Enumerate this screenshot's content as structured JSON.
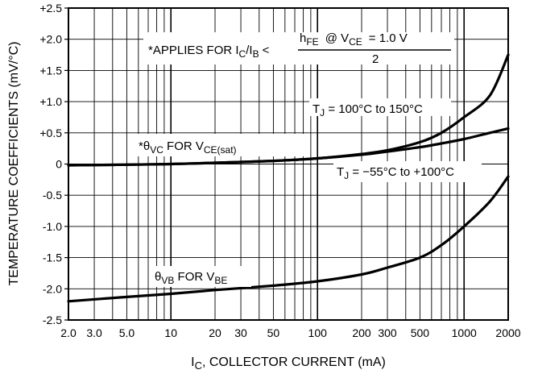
{
  "chart_data": {
    "type": "line",
    "title": "",
    "xlabel": "I_C, COLLECTOR CURRENT (mA)",
    "xlabel_main": "I",
    "xlabel_sub": "C",
    "xlabel_rest": ", COLLECTOR CURRENT (mA)",
    "ylabel": "TEMPERATURE COEFFICIENTS (mV/°C)",
    "xscale": "log",
    "xlim": [
      2.0,
      2000
    ],
    "ylim": [
      -2.5,
      2.5
    ],
    "grid": true,
    "xticks": [
      {
        "value": 2.0,
        "label": "2.0"
      },
      {
        "value": 3.0,
        "label": "3.0"
      },
      {
        "value": 5.0,
        "label": "5.0"
      },
      {
        "value": 10,
        "label": "10"
      },
      {
        "value": 20,
        "label": "20"
      },
      {
        "value": 30,
        "label": "30"
      },
      {
        "value": 50,
        "label": "50"
      },
      {
        "value": 100,
        "label": "100"
      },
      {
        "value": 200,
        "label": "200"
      },
      {
        "value": 300,
        "label": "300"
      },
      {
        "value": 500,
        "label": "500"
      },
      {
        "value": 1000,
        "label": "1000"
      },
      {
        "value": 2000,
        "label": "2000"
      }
    ],
    "yticks": [
      {
        "value": 2.5,
        "label": "+2.5"
      },
      {
        "value": 2.0,
        "label": "+2.0"
      },
      {
        "value": 1.5,
        "label": "+1.5"
      },
      {
        "value": 1.0,
        "label": "+1.0"
      },
      {
        "value": 0.5,
        "label": "+0.5"
      },
      {
        "value": 0,
        "label": "0"
      },
      {
        "value": -0.5,
        "label": "-0.5"
      },
      {
        "value": -1.0,
        "label": "-1.0"
      },
      {
        "value": -1.5,
        "label": "-1.5"
      },
      {
        "value": -2.0,
        "label": "-2.0"
      },
      {
        "value": -2.5,
        "label": "-2.5"
      }
    ],
    "series": [
      {
        "id": "vc-hot",
        "x": [
          2,
          5,
          10,
          20,
          50,
          100,
          200,
          300,
          500,
          700,
          1000,
          1500,
          2000
        ],
        "y": [
          -0.02,
          -0.01,
          0.0,
          0.02,
          0.05,
          0.09,
          0.16,
          0.22,
          0.35,
          0.5,
          0.75,
          1.1,
          1.75
        ]
      },
      {
        "id": "vc-cold",
        "x": [
          2,
          5,
          10,
          20,
          50,
          100,
          200,
          300,
          500,
          700,
          1000,
          1500,
          2000
        ],
        "y": [
          -0.02,
          -0.01,
          0.0,
          0.02,
          0.05,
          0.09,
          0.15,
          0.2,
          0.27,
          0.33,
          0.4,
          0.5,
          0.57
        ]
      },
      {
        "id": "vb",
        "x": [
          2,
          5,
          10,
          20,
          50,
          100,
          200,
          300,
          500,
          700,
          1000,
          1500,
          2000
        ],
        "y": [
          -2.2,
          -2.13,
          -2.08,
          -2.02,
          -1.95,
          -1.88,
          -1.77,
          -1.66,
          -1.5,
          -1.3,
          -1.0,
          -0.6,
          -0.2
        ]
      }
    ],
    "annotations": {
      "applies_prefix": "*APPLIES FOR I",
      "applies_sub_c": "C",
      "applies_slash": "/I",
      "applies_sub_b": "B",
      "applies_lt": "<",
      "hfe_h": "h",
      "hfe_sub": "FE",
      "hfe_at": "@  V",
      "hfe_vce_sub": "CE",
      "hfe_eq": "=  1.0  V",
      "denominator": "2",
      "tj_hot_t": "T",
      "tj_hot_sub": "J",
      "tj_hot_rest": " = 100°C to 150°C",
      "tj_cold_t": "T",
      "tj_cold_sub": "J",
      "tj_cold_rest": " = −55°C to +100°C",
      "vc_star_theta": "*θ",
      "vc_sub": "VC",
      "vc_for": " FOR V",
      "vc_sat_sub": "CE(sat)",
      "vb_theta": "θ",
      "vb_sub": "VB",
      "vb_for": " FOR V",
      "vb_be_sub": "BE"
    }
  }
}
